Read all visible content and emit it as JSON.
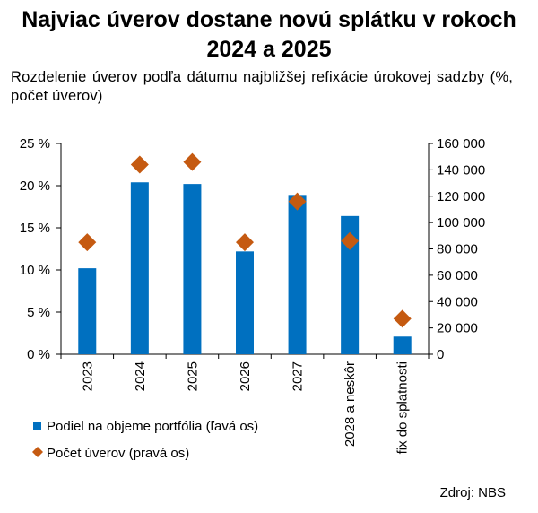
{
  "title": "Najviac úverov dostane novú splátku v rokoch 2024 a 2025",
  "subtitle": "Rozdelenie úverov podľa dátumu najbližšej refixácie úrokovej sadzby (%, počet úverov)",
  "source": "Zdroj: NBS",
  "chart_data": {
    "type": "bar",
    "categories": [
      "2023",
      "2024",
      "2025",
      "2026",
      "2027",
      "2028 a neskôr",
      "fix do splatnosti"
    ],
    "series": [
      {
        "name": "Podiel na objeme portfólia (ľavá os)",
        "type": "bar",
        "axis": "left",
        "color": "#0070c0",
        "values": [
          10.2,
          20.4,
          20.2,
          12.2,
          18.9,
          16.4,
          2.1
        ]
      },
      {
        "name": "Počet úverov (pravá os)",
        "type": "scatter",
        "marker": "diamond",
        "axis": "right",
        "color": "#c55a11",
        "values": [
          85000,
          144000,
          146000,
          85000,
          116000,
          86000,
          27000
        ]
      }
    ],
    "y_left": {
      "ylim": [
        0,
        25
      ],
      "ticks": [
        0,
        5,
        10,
        15,
        20,
        25
      ],
      "tick_labels": [
        "0 %",
        "5 %",
        "10 %",
        "15 %",
        "20 %",
        "25 %"
      ]
    },
    "y_right": {
      "ylim": [
        0,
        160000
      ],
      "ticks": [
        0,
        20000,
        40000,
        60000,
        80000,
        100000,
        120000,
        140000,
        160000
      ],
      "tick_labels": [
        "0",
        "20 000",
        "40 000",
        "60 000",
        "80 000",
        "100 000",
        "120 000",
        "140 000",
        "160 000"
      ]
    },
    "grid": false,
    "legend_position": "bottom-left"
  }
}
